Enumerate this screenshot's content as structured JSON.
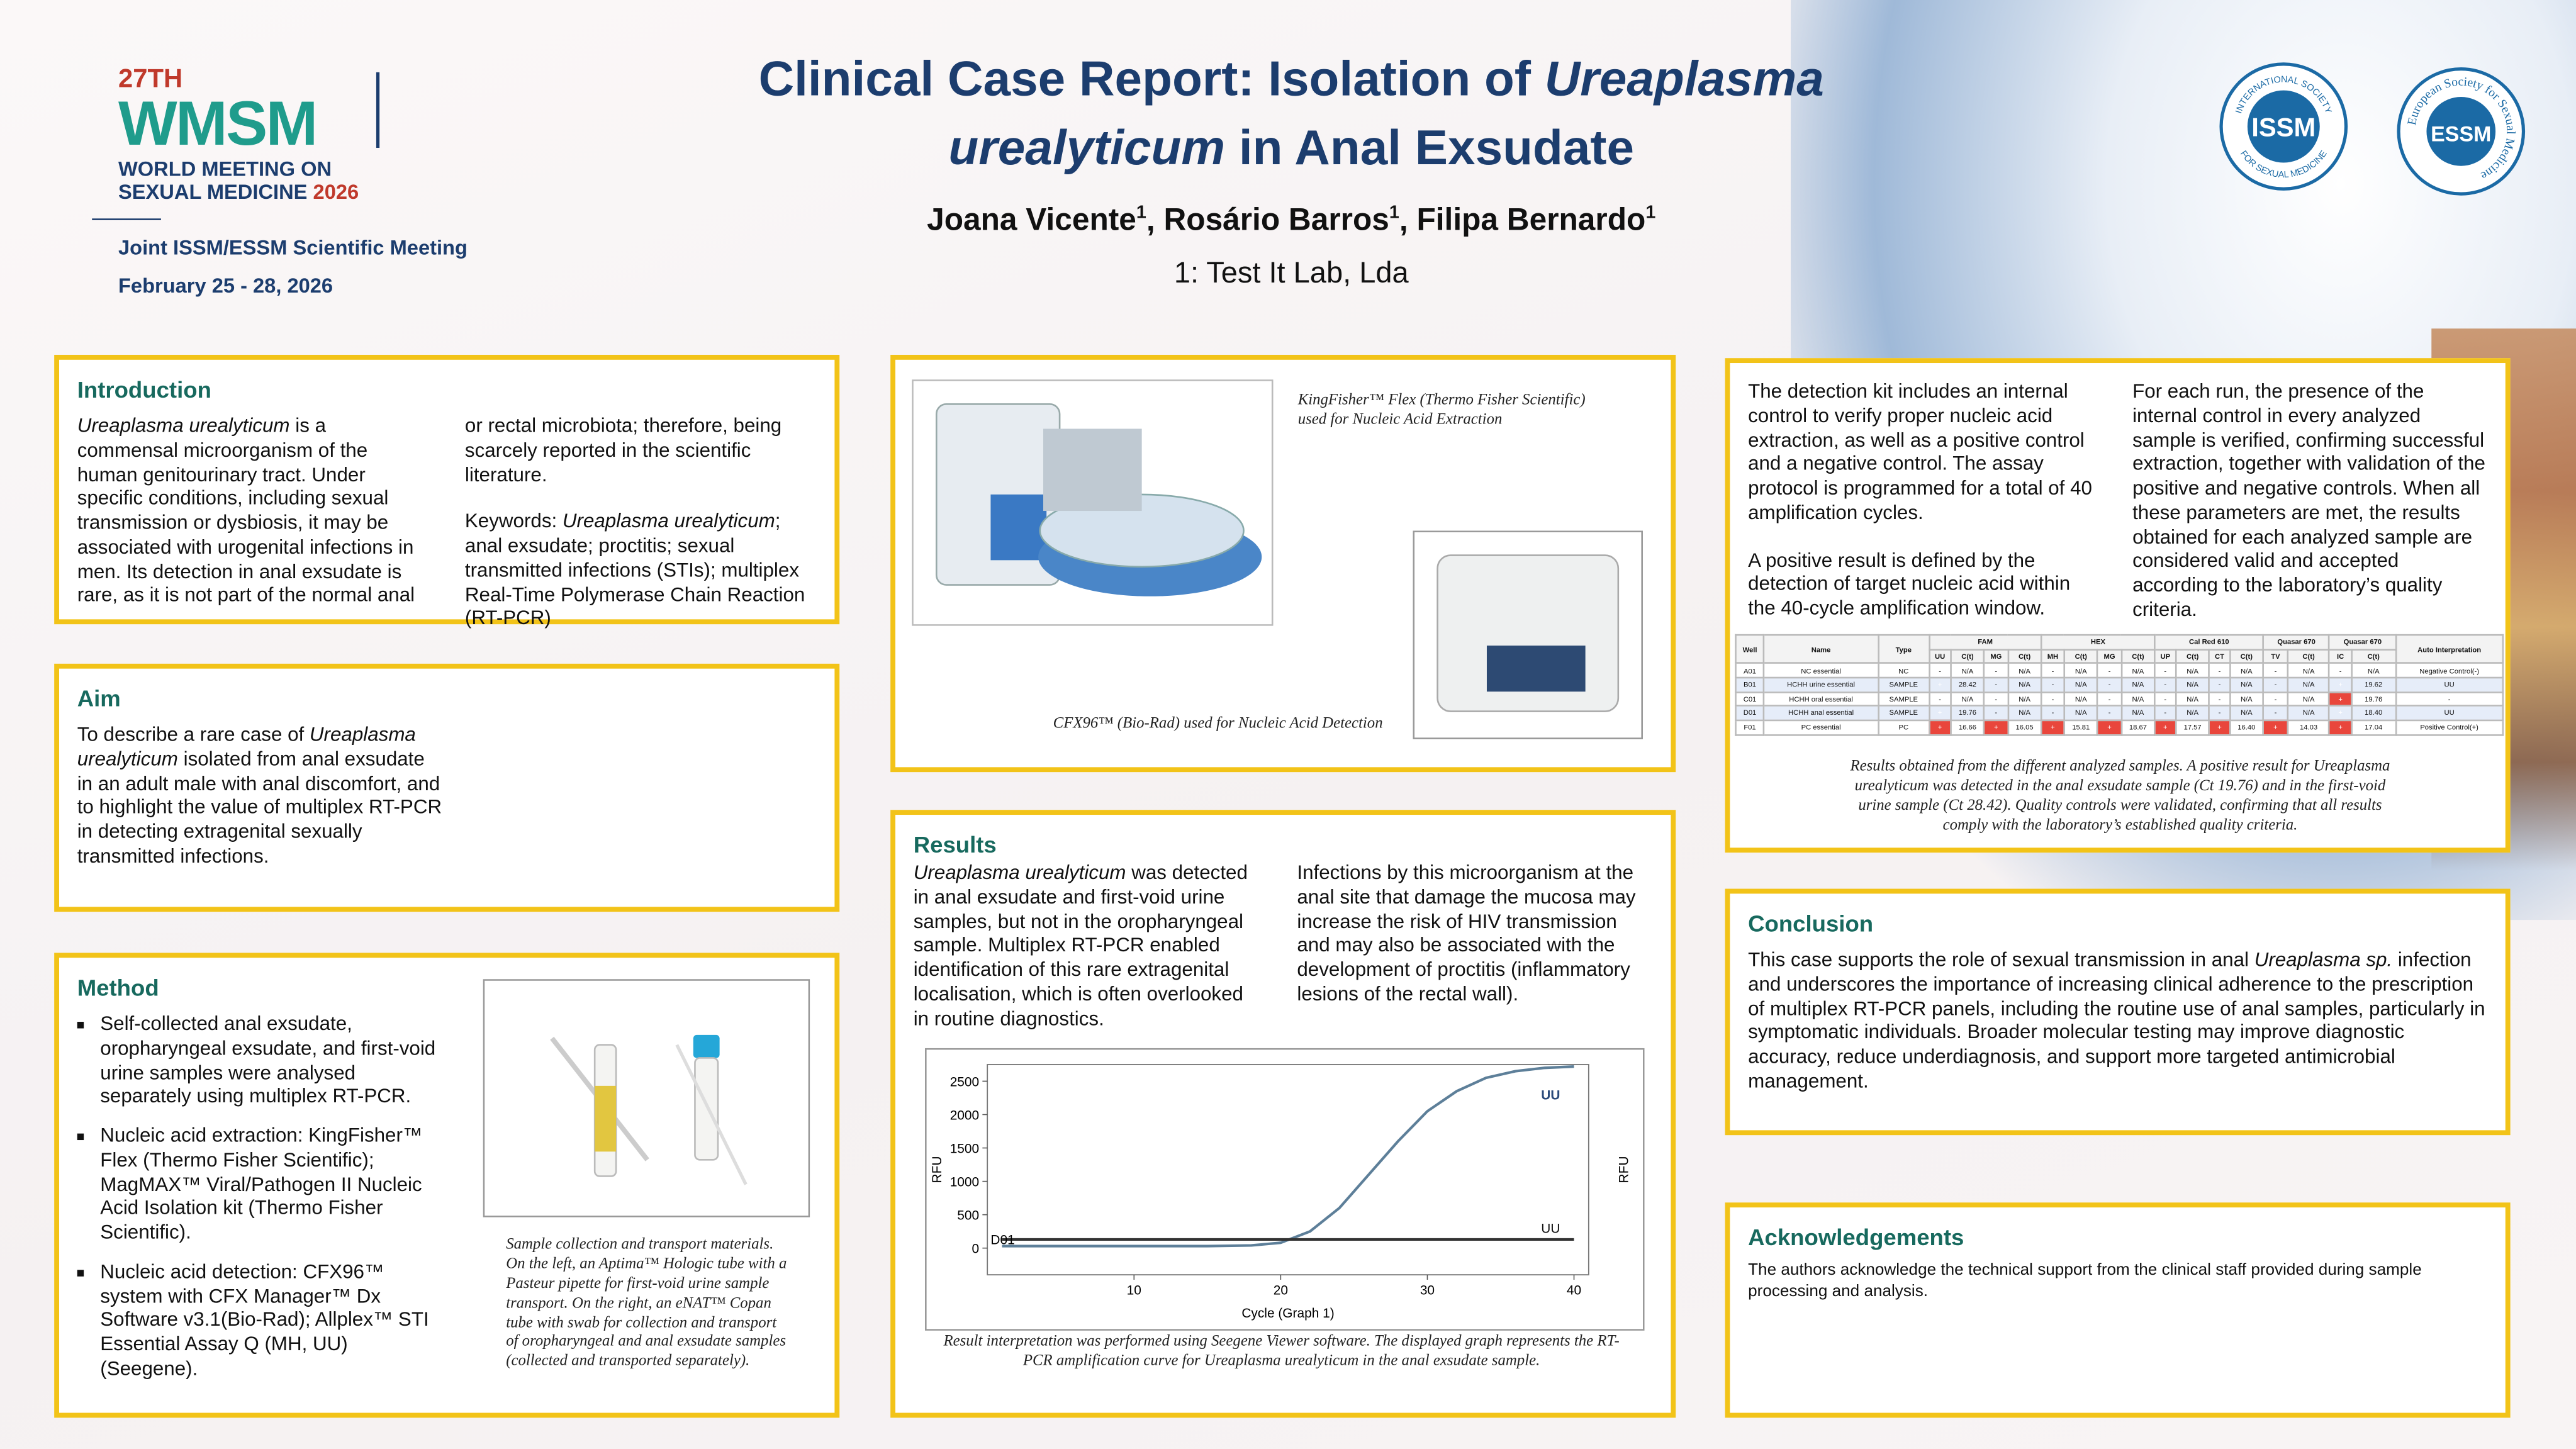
{
  "header": {
    "edition": "27TH",
    "acronym": "WMSM",
    "meeting_name": "WORLD MEETING ON SEXUAL MEDICINE",
    "year": "2026",
    "subtitle": "Joint ISSM/ESSM Scientific Meeting",
    "dates": "February 25 - 28, 2026"
  },
  "title": [
    "Clinical Case Report: Isolation of ",
    {
      "text": "Ureaplasma urealyticum",
      "style": "italic"
    },
    " in Anal Exsudate"
  ],
  "authors": [
    {
      "name": "Joana Vicente",
      "affiliation": "1"
    },
    {
      "name": "Rosário Barros",
      "affiliation": "1"
    },
    {
      "name": "Filipa Bernardo",
      "affiliation": "1"
    }
  ],
  "affiliations": [
    "1: Test It Lab, Lda"
  ],
  "logos": {
    "issm": {
      "acronym": "ISSM",
      "ring_top": "INTERNATIONAL SOCIETY",
      "ring_bottom": "FOR SEXUAL MEDICINE"
    },
    "essm": {
      "acronym": "ESSM",
      "ring": "European Society for Sexual Medicine"
    }
  },
  "introduction": {
    "heading": "Introduction",
    "paragraphs": [
      [
        {
          "text": "Ureaplasma urealyticum",
          "style": "italic"
        },
        " is a commensal microorganism of the human genitourinary tract. Under specific conditions, including sexual transmission or dysbiosis, it may be associated with urogenital infections in men. Its detection in anal exsudate is rare, as it is not part of the normal anal or rectal microbiota; therefore, being scarcely reported in the scientific literature."
      ],
      [
        "Keywords: ",
        {
          "text": "Ureaplasma urealyticum",
          "style": "italic"
        },
        "; anal exsudate; proctitis; sexual transmitted infections (STIs); multiplex Real-Time Polymerase Chain Reaction (RT-PCR)"
      ]
    ]
  },
  "aim": {
    "heading": "Aim",
    "paragraphs": [
      [
        "To describe a rare case of ",
        {
          "text": "Ureaplasma urealyticum",
          "style": "italic"
        },
        " isolated from anal exsudate in an adult male with anal discomfort, and to highlight the value of multiplex RT-PCR in detecting extragenital sexually transmitted infections."
      ]
    ]
  },
  "method": {
    "heading": "Method",
    "bullets": [
      "Self-collected anal exsudate, oropharyngeal exsudate, and first-void urine samples were analysed separately using multiplex RT-PCR.",
      "Nucleic acid extraction: KingFisher™ Flex (Thermo Fisher Scientific); MagMAX™ Viral/Pathogen II Nucleic Acid Isolation kit (Thermo Fisher Scientific).",
      "Nucleic acid detection: CFX96™ system with CFX Manager™ Dx Software v3.1(Bio-Rad); Allplex™ STI Essential Assay Q (MH, UU) (Seegene)."
    ],
    "caption": "Sample collection and transport materials. On the left, an Aptima™ Hologic tube with a Pasteur pipette for first-void urine sample transport. On the right, an eNAT™ Copan tube with swab for collection and transport of oropharyngeal and anal exsudate samples (collected and transported separately)."
  },
  "equipment": {
    "extraction_caption": "KingFisher™ Flex (Thermo Fisher Scientific) used for Nucleic Acid Extraction",
    "detection_caption": "CFX96™ (Bio-Rad) used for Nucleic Acid Detection"
  },
  "results": {
    "heading": "Results",
    "paragraphs": [
      [
        {
          "text": "Ureaplasma urealyticum",
          "style": "italic"
        },
        " was detected in anal exsudate and first-void urine samples, but not in the oropharyngeal sample. Multiplex RT-PCR enabled identification of this rare extragenital localisation, which is often overlooked in routine diagnostics."
      ],
      [
        "Infections by this microorganism at the anal site that damage the mucosa may increase the risk of HIV transmission and may also be associated with the development of proctitis (inflammatory lesions of the rectal wall)."
      ]
    ],
    "chart": {
      "type": "line",
      "x_label": "Cycle (Graph 1)",
      "y_label": "RFU",
      "y2_label": "RFU",
      "well": "D01",
      "xlim": [
        0,
        41
      ],
      "ylim": [
        -400,
        2750
      ],
      "xticks": [
        10,
        20,
        30,
        40
      ],
      "yticks": [
        0,
        500,
        1000,
        1500,
        2000,
        2500
      ],
      "series": [
        {
          "name": "UU",
          "color": "#5d7f99",
          "x": [
            1,
            5,
            10,
            15,
            18,
            20,
            22,
            24,
            26,
            28,
            30,
            32,
            34,
            36,
            38,
            40
          ],
          "values": [
            30,
            30,
            30,
            30,
            40,
            80,
            250,
            600,
            1100,
            1600,
            2050,
            2350,
            2550,
            2650,
            2700,
            2720
          ]
        },
        {
          "name": "UU",
          "color": "#333333",
          "x": [
            1,
            40
          ],
          "values": [
            130,
            130
          ]
        }
      ]
    },
    "caption": [
      "Result interpretation was performed using Seegene Viewer software. The displayed graph represents the RT-PCR amplification curve for ",
      {
        "text": "Ureaplasma urealyticum",
        "style": "italic"
      },
      " in the anal exsudate sample."
    ]
  },
  "quality": {
    "paragraphs": [
      [
        "The detection kit includes an internal control to verify proper nucleic acid extraction, as well as a positive control and a negative control. The assay protocol is programmed for a total of 40 amplification cycles."
      ],
      [
        "A positive result is defined by the detection of target nucleic acid within the 40-cycle amplification window."
      ],
      [
        "For each run, the presence of the internal control in every analyzed sample is verified, confirming successful extraction, together with validation of the positive and negative controls. When all these parameters are met, the results obtained for each analyzed sample are considered valid and accepted according to the laboratory’s quality criteria."
      ]
    ],
    "table": {
      "fixed_headers": [
        "Well",
        "Name",
        "Type"
      ],
      "groups": [
        {
          "name": "FAM",
          "columns": [
            "UU",
            "C(t)",
            "MG",
            "C(t)"
          ]
        },
        {
          "name": "HEX",
          "columns": [
            "MH",
            "C(t)",
            "MG",
            "C(t)"
          ]
        },
        {
          "name": "Cal Red 610",
          "columns": [
            "UP",
            "C(t)",
            "CT",
            "C(t)"
          ]
        },
        {
          "name": "Quasar 670",
          "columns": [
            "TV",
            "C(t)"
          ]
        },
        {
          "name": "Quasar 670",
          "columns": [
            "IC",
            "C(t)"
          ]
        }
      ],
      "interpretation_header": "Auto Interpretation",
      "rows": [
        [
          "A01",
          "NC essential",
          "NC",
          "-",
          "N/A",
          "-",
          "N/A",
          "-",
          "N/A",
          "-",
          "N/A",
          "-",
          "N/A",
          "-",
          "N/A",
          "-",
          "N/A",
          "-",
          "N/A",
          "Negative Control(-)"
        ],
        [
          "B01",
          "HCHH urine essential",
          "SAMPLE",
          "+",
          "28.42",
          "-",
          "N/A",
          "-",
          "N/A",
          "-",
          "N/A",
          "-",
          "N/A",
          "-",
          "N/A",
          "-",
          "N/A",
          "+",
          "19.62",
          "UU"
        ],
        [
          "C01",
          "HCHH oral essential",
          "SAMPLE",
          "-",
          "N/A",
          "-",
          "N/A",
          "-",
          "N/A",
          "-",
          "N/A",
          "-",
          "N/A",
          "-",
          "N/A",
          "-",
          "N/A",
          "+",
          "19.76",
          "-"
        ],
        [
          "D01",
          "HCHH anal essential",
          "SAMPLE",
          "+",
          "19.76",
          "-",
          "N/A",
          "-",
          "N/A",
          "-",
          "N/A",
          "-",
          "N/A",
          "-",
          "N/A",
          "-",
          "N/A",
          "+",
          "18.40",
          "UU"
        ],
        [
          "F01",
          "PC essential",
          "PC",
          "+",
          "16.66",
          "+",
          "16.05",
          "+",
          "15.81",
          "+",
          "18.67",
          "+",
          "17.57",
          "+",
          "16.40",
          "+",
          "14.03",
          "+",
          "17.04",
          "Positive Control(+)"
        ]
      ]
    },
    "caption": "Results obtained from the different analyzed samples. A positive result for Ureaplasma urealyticum was detected in the anal exsudate sample (Ct 19.76) and in the first-void urine sample (Ct 28.42). Quality controls were validated, confirming that all results comply with the laboratory’s established quality criteria."
  },
  "conclusion": {
    "heading": "Conclusion",
    "paragraphs": [
      [
        "This case supports the role of sexual transmission in anal ",
        {
          "text": "Ureaplasma sp.",
          "style": "italic"
        },
        " infection and underscores the importance of increasing clinical adherence to the prescription of multiplex RT-PCR panels, including the routine use of anal samples, particularly in symptomatic individuals. Broader molecular testing may improve diagnostic accuracy, reduce underdiagnosis, and support more targeted antimicrobial management."
      ]
    ]
  },
  "acknowledgements": {
    "heading": "Acknowledgements",
    "text": "The authors acknowledge the technical support from the clinical staff provided during sample processing and analysis."
  }
}
